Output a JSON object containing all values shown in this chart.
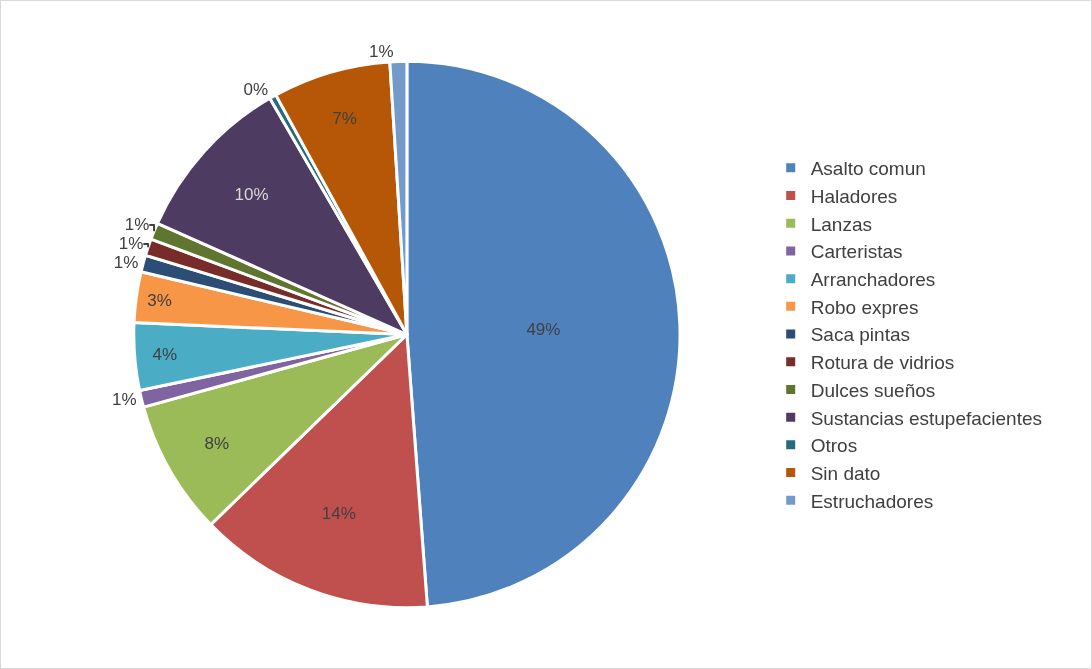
{
  "chart_data": {
    "type": "pie",
    "categories": [
      "Asalto comun",
      "Haladores",
      "Lanzas",
      "Carteristas",
      "Arranchadores",
      "Robo expres",
      "Saca pintas",
      "Rotura de vidrios",
      "Dulces sueños",
      "Sustancias estupefacientes",
      "Otros",
      "Sin dato",
      "Estruchadores"
    ],
    "values": [
      49,
      14,
      8,
      1,
      4,
      3,
      1,
      1,
      1,
      10,
      0.4,
      7,
      1
    ],
    "value_labels": [
      "49%",
      "14%",
      "8%",
      "1%",
      "4%",
      "3%",
      "1%",
      "1%",
      "1%",
      "10%",
      "0%",
      "7%",
      "1%"
    ],
    "colors": [
      "#4f81bd",
      "#c0504d",
      "#9bbb59",
      "#8064a2",
      "#4bacc6",
      "#f79646",
      "#2c4d75",
      "#772c2a",
      "#5f7530",
      "#4d3b62",
      "#276a7c",
      "#b65708",
      "#729aca"
    ],
    "legend": "right"
  }
}
